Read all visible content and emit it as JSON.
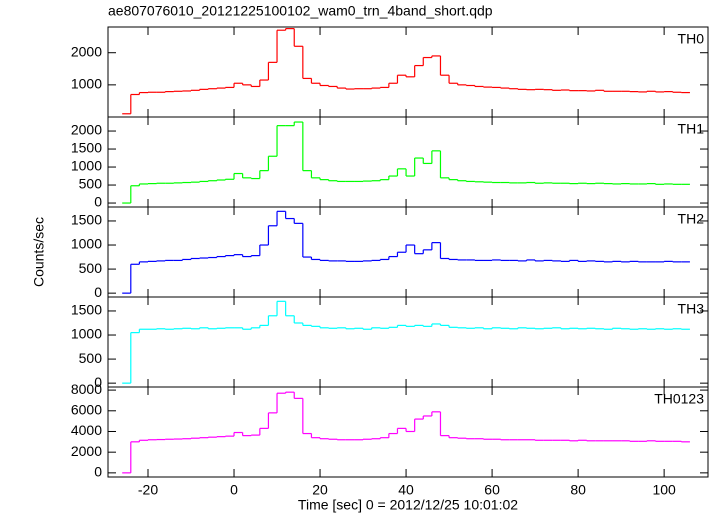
{
  "chart_data": {
    "type": "step",
    "title": "ae807076010_20121225100102_wam0_trn_4band_short.qdp",
    "xlabel": "Time [sec] 0 = 2012/12/25 10:01:02",
    "ylabel": "Counts/sec",
    "xlim": [
      -29.3,
      110.2
    ],
    "xticks": [
      -20,
      0,
      20,
      40,
      60,
      80,
      100
    ],
    "x": [
      -26,
      -24,
      -22,
      -20,
      -18,
      -16,
      -14,
      -12,
      -10,
      -8,
      -6,
      -4,
      -2,
      0,
      2,
      4,
      6,
      8,
      10,
      12,
      14,
      16,
      18,
      20,
      22,
      24,
      26,
      28,
      30,
      32,
      34,
      36,
      38,
      40,
      42,
      44,
      46,
      48,
      50,
      52,
      54,
      56,
      58,
      60,
      62,
      64,
      66,
      68,
      70,
      72,
      74,
      76,
      78,
      80,
      82,
      84,
      86,
      88,
      90,
      92,
      94,
      96,
      98,
      100,
      102,
      104
    ],
    "series": [
      {
        "name": "TH0",
        "color": "#ff0000",
        "ylim": [
          0,
          2800
        ],
        "yticks": [
          1000,
          2000
        ],
        "values": [
          100,
          700,
          760,
          770,
          770,
          790,
          800,
          810,
          830,
          860,
          880,
          900,
          920,
          1050,
          1000,
          950,
          1150,
          1700,
          2700,
          2750,
          2200,
          1200,
          1050,
          980,
          950,
          900,
          870,
          880,
          880,
          900,
          920,
          1050,
          1300,
          1250,
          1600,
          1850,
          1900,
          1300,
          1050,
          1000,
          980,
          950,
          930,
          920,
          900,
          880,
          860,
          850,
          860,
          850,
          830,
          840,
          820,
          820,
          810,
          830,
          800,
          800,
          800,
          790,
          780,
          800,
          780,
          790,
          770,
          760
        ]
      },
      {
        "name": "TH1",
        "color": "#00ff00",
        "ylim": [
          -110,
          2390
        ],
        "yticks": [
          0,
          500,
          1000,
          1500,
          2000
        ],
        "values": [
          0,
          480,
          530,
          540,
          550,
          550,
          560,
          570,
          580,
          600,
          620,
          640,
          660,
          820,
          700,
          680,
          900,
          1300,
          2150,
          2150,
          2250,
          900,
          700,
          650,
          620,
          600,
          600,
          600,
          610,
          620,
          650,
          750,
          950,
          750,
          1250,
          1100,
          1450,
          700,
          650,
          620,
          600,
          590,
          580,
          570,
          570,
          560,
          560,
          570,
          550,
          560,
          550,
          550,
          540,
          550,
          540,
          550,
          540,
          530,
          540,
          530,
          530,
          540,
          520,
          530,
          520,
          520
        ]
      },
      {
        "name": "TH2",
        "color": "#0000ff",
        "ylim": [
          -80,
          1790
        ],
        "yticks": [
          0,
          500,
          1000,
          1500
        ],
        "values": [
          0,
          600,
          650,
          660,
          670,
          680,
          680,
          700,
          720,
          730,
          740,
          760,
          780,
          800,
          760,
          780,
          1000,
          1400,
          1700,
          1550,
          1450,
          750,
          700,
          680,
          670,
          670,
          660,
          660,
          670,
          680,
          700,
          760,
          850,
          1000,
          820,
          900,
          1050,
          720,
          700,
          690,
          690,
          680,
          680,
          690,
          680,
          680,
          670,
          690,
          670,
          680,
          670,
          660,
          680,
          660,
          670,
          660,
          650,
          660,
          650,
          660,
          650,
          650,
          650,
          660,
          650,
          650
        ]
      },
      {
        "name": "TH3",
        "color": "#00ffff",
        "ylim": [
          -80,
          1790
        ],
        "yticks": [
          0,
          500,
          1000,
          1500
        ],
        "values": [
          0,
          1050,
          1120,
          1120,
          1130,
          1120,
          1130,
          1140,
          1130,
          1150,
          1130,
          1140,
          1150,
          1150,
          1120,
          1150,
          1200,
          1400,
          1700,
          1400,
          1250,
          1200,
          1180,
          1150,
          1140,
          1150,
          1130,
          1140,
          1120,
          1150,
          1140,
          1160,
          1200,
          1180,
          1200,
          1180,
          1230,
          1200,
          1160,
          1150,
          1140,
          1150,
          1130,
          1150,
          1140,
          1130,
          1150,
          1140,
          1130,
          1140,
          1150,
          1130,
          1140,
          1130,
          1140,
          1130,
          1120,
          1140,
          1130,
          1120,
          1130,
          1120,
          1130,
          1120,
          1130,
          1120
        ]
      },
      {
        "name": "TH0123",
        "color": "#ff00ff",
        "ylim": [
          -400,
          8300
        ],
        "yticks": [
          0,
          2000,
          4000,
          6000,
          8000
        ],
        "values": [
          0,
          3000,
          3150,
          3200,
          3220,
          3250,
          3270,
          3300,
          3350,
          3400,
          3450,
          3500,
          3550,
          3900,
          3600,
          3650,
          4300,
          5800,
          7700,
          7800,
          7200,
          3800,
          3400,
          3300,
          3250,
          3200,
          3200,
          3200,
          3250,
          3300,
          3400,
          3800,
          4300,
          4000,
          5200,
          5500,
          5900,
          3600,
          3400,
          3350,
          3300,
          3300,
          3250,
          3250,
          3200,
          3200,
          3200,
          3200,
          3150,
          3150,
          3150,
          3150,
          3100,
          3150,
          3100,
          3100,
          3100,
          3100,
          3100,
          3050,
          3050,
          3100,
          3050,
          3050,
          3050,
          3000
        ]
      }
    ]
  }
}
